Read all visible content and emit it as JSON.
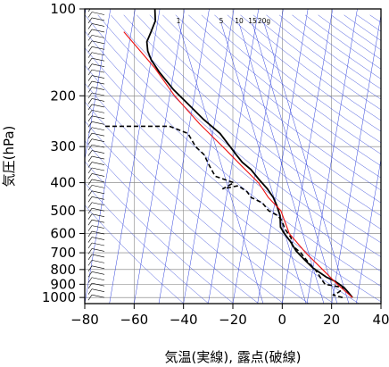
{
  "chart_data": {
    "type": "line",
    "chart_kind": "skew-T log-p thermodynamic diagram (emagram-style)",
    "xlabel": "気温(実線), 露点(破線)",
    "ylabel": "気圧(hPa)",
    "x_ticks": [
      "−80",
      "−60",
      "−40",
      "−20",
      "0",
      "20",
      "40"
    ],
    "y_ticks": [
      "100",
      "200",
      "300",
      "400",
      "500",
      "600",
      "700",
      "800",
      "900",
      "1000"
    ],
    "xlim": [
      -80,
      40
    ],
    "ylim": [
      1050,
      100
    ],
    "y_scale": "log",
    "isotherm_skew": "isotherms tilt toward higher temperature with decreasing pressure",
    "mixing_ratio_labels": [
      "1",
      "5",
      "10",
      "15",
      "20g"
    ],
    "grid": true,
    "series": [
      {
        "style": "solid-black",
        "points": [
          [
            28,
            1000
          ],
          [
            26,
            960
          ],
          [
            24,
            925
          ],
          [
            20,
            880
          ],
          [
            16,
            850
          ],
          [
            10,
            790
          ],
          [
            6,
            740
          ],
          [
            2,
            690
          ],
          [
            -1,
            640
          ],
          [
            -4,
            600
          ],
          [
            -6,
            570
          ],
          [
            -7,
            520
          ],
          [
            -9,
            480
          ],
          [
            -11,
            450
          ],
          [
            -14,
            420
          ],
          [
            -18,
            390
          ],
          [
            -22,
            360
          ],
          [
            -26,
            340
          ],
          [
            -29,
            320
          ],
          [
            -32,
            300
          ],
          [
            -37,
            270
          ],
          [
            -45,
            240
          ],
          [
            -53,
            210
          ],
          [
            -59,
            190
          ],
          [
            -66,
            165
          ],
          [
            -70,
            150
          ],
          [
            -72,
            140
          ],
          [
            -73,
            130
          ],
          [
            -72,
            120
          ],
          [
            -71,
            110
          ],
          [
            -72,
            100
          ]
        ]
      },
      {
        "style": "dashed-black",
        "points": [
          [
            24,
            1000
          ],
          [
            20,
            980
          ],
          [
            22,
            960
          ],
          [
            24,
            925
          ],
          [
            16,
            900
          ],
          [
            14,
            860
          ],
          [
            11,
            800
          ],
          [
            8,
            760
          ],
          [
            4,
            700
          ],
          [
            0,
            660
          ],
          [
            -1,
            620
          ],
          [
            -4,
            580
          ],
          [
            -6,
            540
          ],
          [
            -8,
            520
          ],
          [
            -12,
            500
          ],
          [
            -15,
            470
          ],
          [
            -20,
            450
          ],
          [
            -22,
            430
          ],
          [
            -26,
            410
          ],
          [
            -32,
            420
          ],
          [
            -28,
            400
          ],
          [
            -36,
            380
          ],
          [
            -39,
            350
          ],
          [
            -42,
            320
          ],
          [
            -46,
            300
          ],
          [
            -50,
            270
          ],
          [
            -58,
            255
          ],
          [
            -85,
            255
          ]
        ]
      },
      {
        "style": "solid-red",
        "points": [
          [
            28,
            1000
          ],
          [
            21,
            900
          ],
          [
            14,
            800
          ],
          [
            6,
            700
          ],
          [
            -2,
            600
          ],
          [
            -7,
            500
          ],
          [
            -13,
            450
          ],
          [
            -18,
            400
          ],
          [
            -26,
            350
          ],
          [
            -35,
            300
          ],
          [
            -46,
            250
          ],
          [
            -58,
            200
          ],
          [
            -68,
            160
          ],
          [
            -83,
            120
          ]
        ]
      }
    ]
  }
}
